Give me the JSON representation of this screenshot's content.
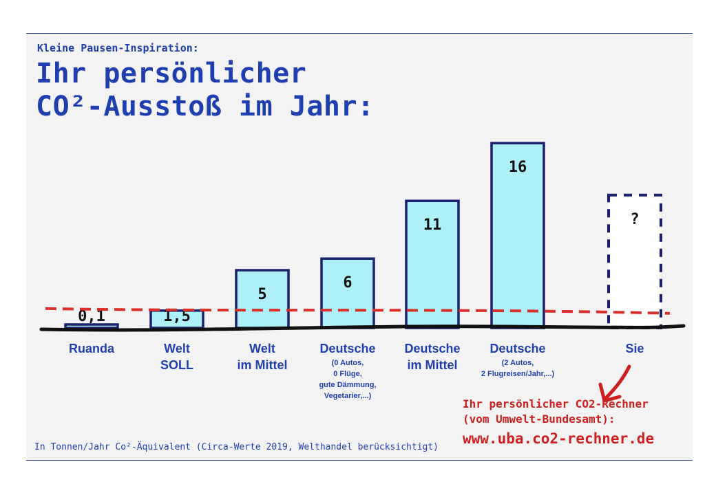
{
  "kicker": "Kleine Pausen-Inspiration:",
  "title": {
    "line1": "Ihr persönlicher",
    "line2": "CO²-Ausstoß im Jahr:"
  },
  "footnote": "In Tonnen/Jahr Co²-Äquivalent (Circa-Werte 2019, Welthandel berücksichtigt)",
  "calculator": {
    "line1": "Ihr persönlicher CO2-Rechner",
    "line2": "(vom Umwelt-Bundesamt):",
    "url": "www.uba.co2-rechner.de"
  },
  "colors": {
    "bar_fill": "#aef0f7",
    "bar_outline": "#1a1f6e",
    "target_line": "#d9302c",
    "text_blue": "#1f3fae",
    "text_red": "#cc2020"
  },
  "chart_data": {
    "type": "bar",
    "categories": [
      {
        "lines": [
          "Ruanda"
        ],
        "note": []
      },
      {
        "lines": [
          "Welt",
          "SOLL"
        ],
        "note": []
      },
      {
        "lines": [
          "Welt",
          "im Mittel"
        ],
        "note": []
      },
      {
        "lines": [
          "Deutsche"
        ],
        "note": [
          "(0 Autos,",
          "0 Flüge,",
          "gute Dämmung,",
          "Vegetarier,...)"
        ]
      },
      {
        "lines": [
          "Deutsche",
          "im Mittel"
        ],
        "note": []
      },
      {
        "lines": [
          "Deutsche"
        ],
        "note": [
          "(2 Autos,",
          "2 Flugreisen/Jahr,...)"
        ]
      },
      {
        "lines": [
          "Sie"
        ],
        "note": []
      }
    ],
    "values": [
      0.1,
      1.5,
      5,
      6,
      11,
      16,
      null
    ],
    "value_labels": [
      "0,1",
      "1,5",
      "5",
      "6",
      "11",
      "16",
      "?"
    ],
    "unknown_bar_level": 11.5,
    "reference_line_value": 1.5,
    "ylim": [
      0,
      17.5
    ]
  }
}
